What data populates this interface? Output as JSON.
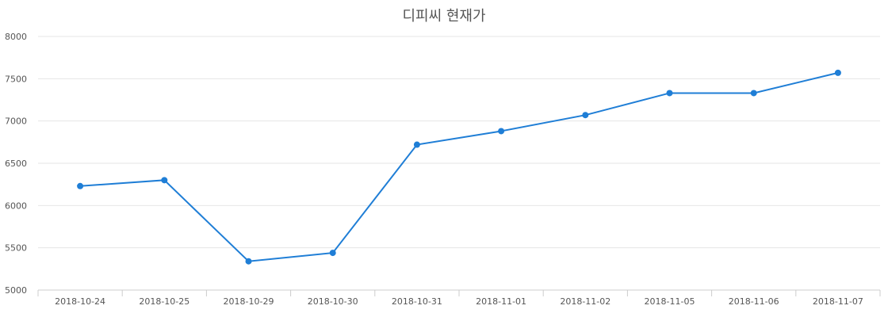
{
  "chart_data": {
    "type": "line",
    "title": "디피씨 현재가",
    "xlabel": "",
    "ylabel": "",
    "categories": [
      "2018-10-24",
      "2018-10-25",
      "2018-10-29",
      "2018-10-30",
      "2018-10-31",
      "2018-11-01",
      "2018-11-02",
      "2018-11-05",
      "2018-11-06",
      "2018-11-07"
    ],
    "series": [
      {
        "values": [
          6230,
          6300,
          5340,
          5440,
          6720,
          6880,
          7070,
          7330,
          7330,
          7570
        ],
        "color": "#1f7ed6"
      }
    ],
    "ylim": [
      5000,
      8000
    ],
    "yticks": [
      5000,
      5500,
      6000,
      6500,
      7000,
      7500,
      8000
    ],
    "grid": true,
    "legend": "none"
  }
}
